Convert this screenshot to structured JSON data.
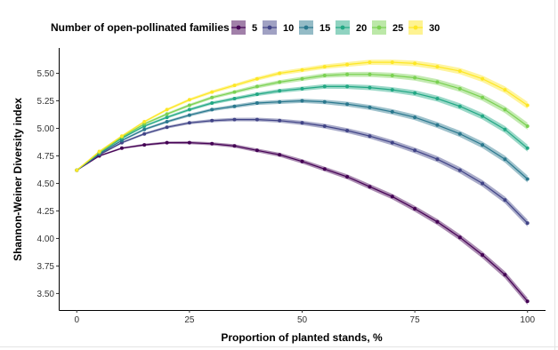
{
  "chart_data": {
    "type": "line",
    "title": "",
    "xlabel": "Proportion of planted stands, %",
    "ylabel": "Shannon-Weiner Diversity index",
    "xlim": [
      -4,
      104
    ],
    "ylim": [
      3.35,
      5.73
    ],
    "x_ticks": [
      0,
      25,
      50,
      75,
      100
    ],
    "y_ticks": [
      3.5,
      3.75,
      4.0,
      4.25,
      4.5,
      4.75,
      5.0,
      5.25,
      5.5
    ],
    "x_tick_labels": [
      "0",
      "25",
      "50",
      "75",
      "100"
    ],
    "y_tick_labels": [
      "3.50",
      "3.75",
      "4.00",
      "4.25",
      "4.50",
      "4.75",
      "5.00",
      "5.25",
      "5.50"
    ],
    "grid": false,
    "confidence_band": true,
    "legend": {
      "title": "Number of open-pollinated families",
      "position": "top"
    },
    "x": [
      0,
      5,
      10,
      15,
      20,
      25,
      30,
      35,
      40,
      45,
      50,
      55,
      60,
      65,
      70,
      75,
      80,
      85,
      90,
      95,
      100
    ],
    "series": [
      {
        "name": "5",
        "color": "#440154",
        "values": [
          4.62,
          4.75,
          4.82,
          4.85,
          4.87,
          4.87,
          4.86,
          4.84,
          4.8,
          4.76,
          4.7,
          4.63,
          4.56,
          4.47,
          4.38,
          4.27,
          4.15,
          4.01,
          3.85,
          3.67,
          3.43
        ]
      },
      {
        "name": "10",
        "color": "#414487",
        "values": [
          4.62,
          4.76,
          4.87,
          4.95,
          5.01,
          5.05,
          5.07,
          5.08,
          5.08,
          5.07,
          5.05,
          5.02,
          4.98,
          4.93,
          4.87,
          4.8,
          4.72,
          4.62,
          4.5,
          4.35,
          4.14
        ]
      },
      {
        "name": "15",
        "color": "#2a788e",
        "values": [
          4.62,
          4.77,
          4.89,
          4.99,
          5.06,
          5.12,
          5.17,
          5.2,
          5.23,
          5.24,
          5.25,
          5.24,
          5.22,
          5.19,
          5.15,
          5.1,
          5.03,
          4.95,
          4.85,
          4.72,
          4.54
        ]
      },
      {
        "name": "20",
        "color": "#22a884",
        "values": [
          4.62,
          4.78,
          4.91,
          5.02,
          5.1,
          5.17,
          5.23,
          5.27,
          5.31,
          5.34,
          5.36,
          5.38,
          5.38,
          5.37,
          5.35,
          5.32,
          5.27,
          5.2,
          5.11,
          4.99,
          4.82
        ]
      },
      {
        "name": "25",
        "color": "#7ad151",
        "values": [
          4.62,
          4.78,
          4.92,
          5.04,
          5.13,
          5.21,
          5.28,
          5.33,
          5.38,
          5.42,
          5.45,
          5.48,
          5.49,
          5.49,
          5.48,
          5.46,
          5.42,
          5.36,
          5.28,
          5.17,
          5.02
        ]
      },
      {
        "name": "30",
        "color": "#fde725",
        "values": [
          4.62,
          4.79,
          4.93,
          5.06,
          5.17,
          5.26,
          5.33,
          5.39,
          5.45,
          5.5,
          5.53,
          5.56,
          5.58,
          5.6,
          5.6,
          5.59,
          5.56,
          5.52,
          5.45,
          5.35,
          5.21
        ]
      }
    ]
  }
}
